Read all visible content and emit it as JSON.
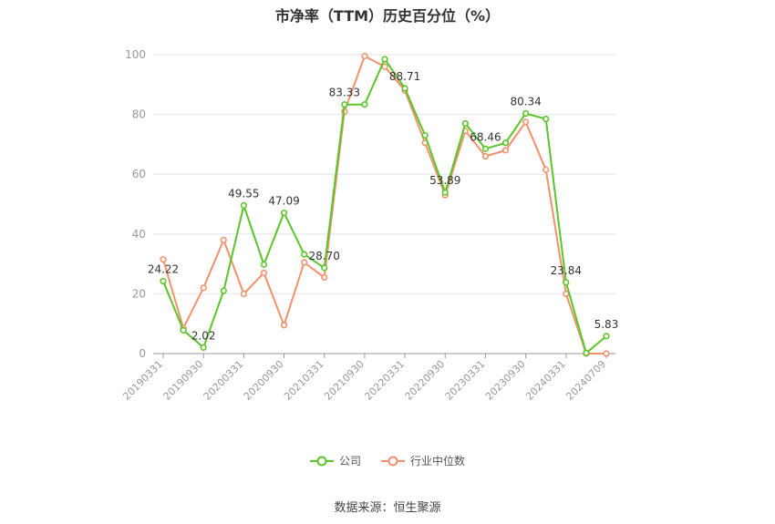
{
  "chart_data": {
    "type": "line",
    "title": "市净率（TTM）历史百分位（%）",
    "source": "数据来源：恒生聚源",
    "ylim": [
      0,
      100
    ],
    "yticks": [
      0,
      20,
      40,
      60,
      80,
      100
    ],
    "x_tick_labels": [
      "20190331",
      "20190930",
      "20200331",
      "20200930",
      "20210331",
      "20210930",
      "20220331",
      "20220930",
      "20230331",
      "20230930",
      "20240331",
      "20240709"
    ],
    "grid": true,
    "legend_position": "bottom-center",
    "series": [
      {
        "name": "公司",
        "color": "#5ac528",
        "values": [
          24.22,
          7.8,
          2.02,
          21.0,
          49.55,
          29.8,
          47.09,
          33.2,
          28.7,
          83.33,
          83.33,
          98.5,
          88.71,
          73.0,
          53.89,
          77.0,
          68.5,
          70.5,
          80.34,
          78.5,
          23.84,
          0.2,
          5.83
        ],
        "labels": [
          "24.22",
          "",
          "2.02",
          "",
          "49.55",
          "",
          "47.09",
          "",
          "28.70",
          "83.33",
          "",
          "",
          "88.71",
          "",
          "53.89",
          "",
          "68.46",
          "",
          "80.34",
          "",
          "23.84",
          "",
          "5.83"
        ]
      },
      {
        "name": "行业中位数",
        "color": "#f4906b",
        "values": [
          31.5,
          8.5,
          22.0,
          38.0,
          20.0,
          27.0,
          9.5,
          30.5,
          25.5,
          81.0,
          99.5,
          96.0,
          88.0,
          70.5,
          53.0,
          74.5,
          66.0,
          68.0,
          77.5,
          61.5,
          20.0,
          0.0,
          0.0
        ]
      }
    ]
  }
}
